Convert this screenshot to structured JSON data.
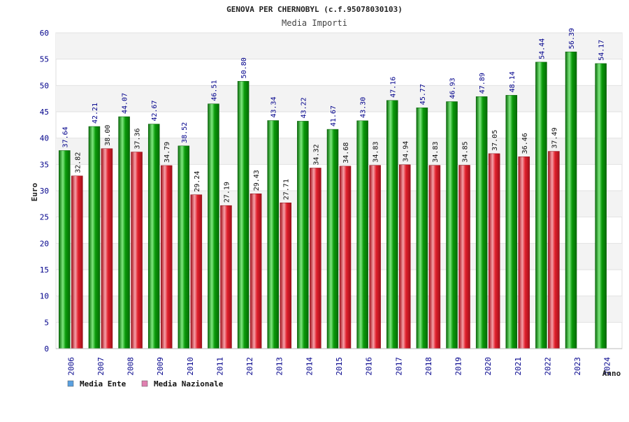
{
  "chart_data": {
    "type": "bar",
    "title": "GENOVA PER CHERNOBYL (c.f.95078030103)",
    "subtitle": "Media Importi",
    "xlabel": "Anno",
    "ylabel": "Euro",
    "ylim": [
      0,
      60
    ],
    "yticks": [
      0,
      5,
      10,
      15,
      20,
      25,
      30,
      35,
      40,
      45,
      50,
      55,
      60
    ],
    "grid": true,
    "legend_position": "bottom-left",
    "categories": [
      "2006",
      "2007",
      "2008",
      "2009",
      "2010",
      "2011",
      "2012",
      "2013",
      "2014",
      "2015",
      "2016",
      "2017",
      "2018",
      "2019",
      "2020",
      "2021",
      "2022",
      "2023",
      "2024"
    ],
    "series": [
      {
        "name": "Media Ente",
        "color": "#0a9a0a",
        "legend_color": "#5aa0e0",
        "values": [
          37.64,
          42.21,
          44.07,
          42.67,
          38.52,
          46.51,
          50.8,
          43.34,
          43.22,
          41.67,
          43.3,
          47.16,
          45.77,
          46.93,
          47.89,
          48.14,
          54.44,
          56.39,
          54.17
        ],
        "labels": [
          "37.64",
          "42.21",
          "44.07",
          "42.67",
          "38.52",
          "46.51",
          "50.80",
          "43.34",
          "43.22",
          "41.67",
          "43.30",
          "47.16",
          "45.77",
          "46.93",
          "47.89",
          "48.14",
          "54.44",
          "56.39",
          "54.17"
        ]
      },
      {
        "name": "Media Nazionale",
        "color": "#e0202c",
        "legend_color": "#e080b0",
        "values": [
          32.82,
          38.0,
          37.36,
          34.79,
          29.24,
          27.19,
          29.43,
          27.71,
          34.32,
          34.68,
          34.83,
          34.94,
          34.83,
          34.85,
          37.05,
          36.46,
          37.49,
          null,
          null
        ],
        "labels": [
          "32.82",
          "38.00",
          "37.36",
          "34.79",
          "29.24",
          "27.19",
          "29.43",
          "27.71",
          "34.32",
          "34.68",
          "34.83",
          "34.94",
          "34.83",
          "34.85",
          "37.05",
          "36.46",
          "37.49",
          "",
          ""
        ]
      }
    ]
  }
}
